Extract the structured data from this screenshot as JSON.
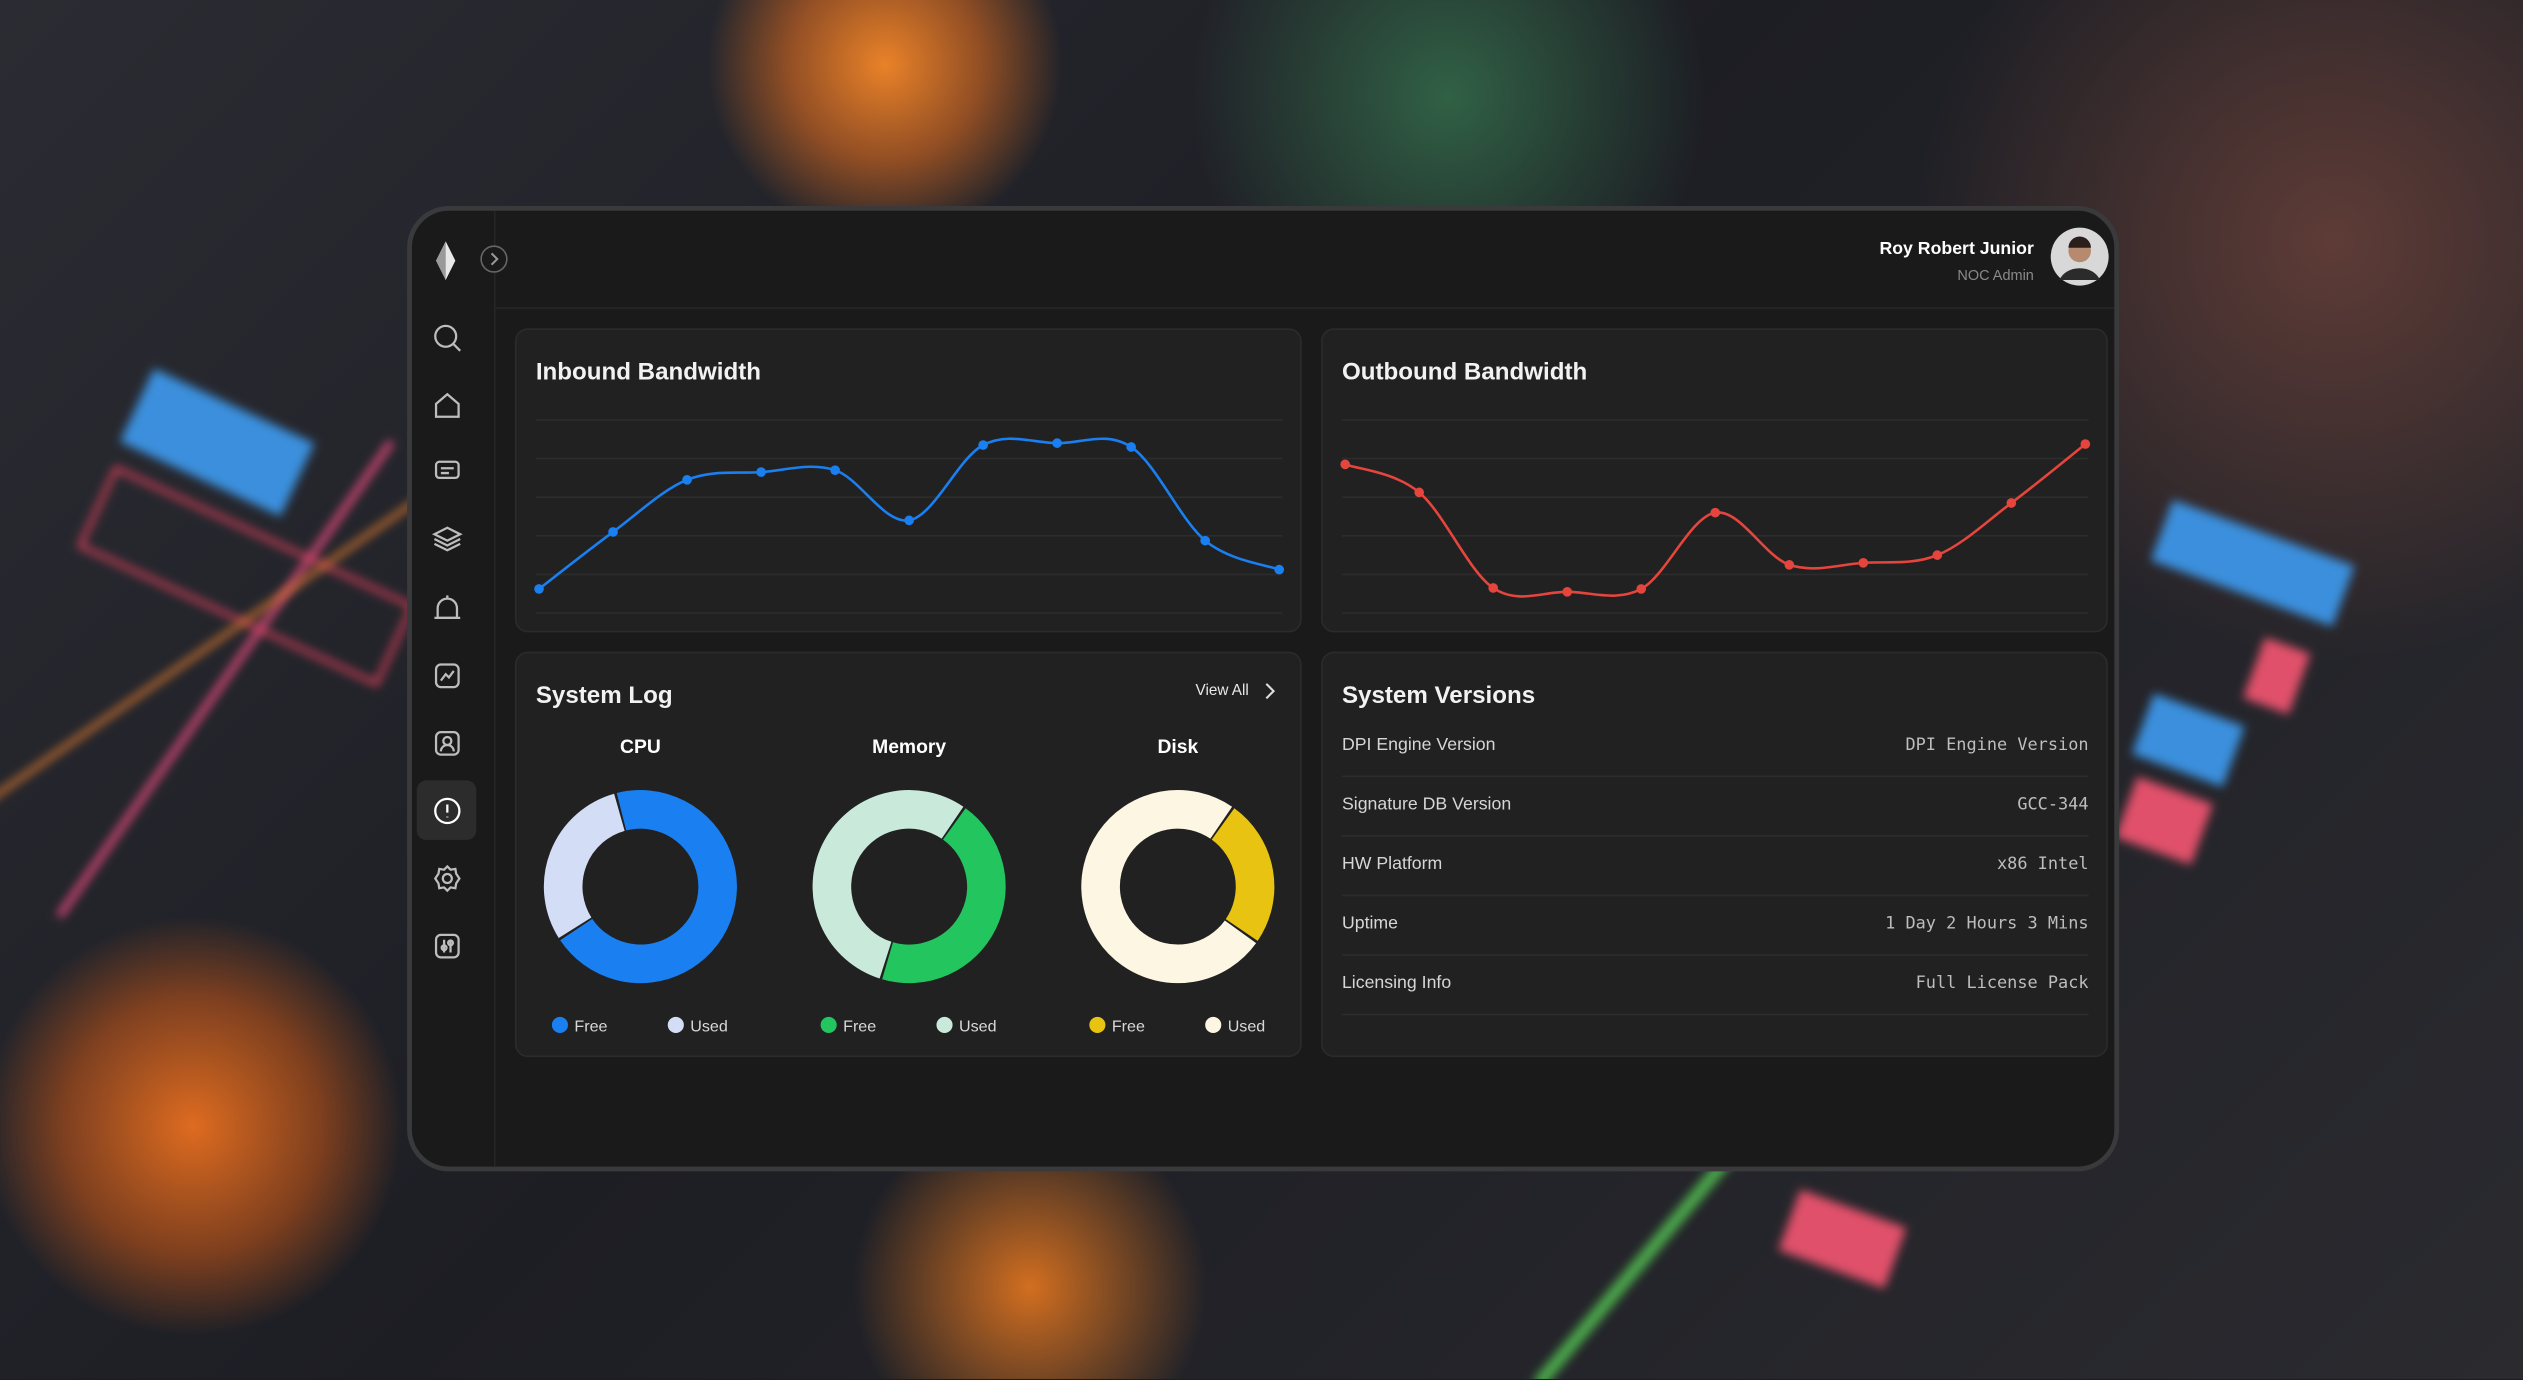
{
  "header": {
    "user_name": "Roy Robert Junior",
    "user_role": "NOC Admin"
  },
  "chart_data": [
    {
      "type": "line",
      "title": "Inbound Bandwidth",
      "color": "#1a7ff0",
      "ylim": [
        0,
        100
      ],
      "values": [
        12.5,
        42,
        69,
        73,
        74,
        48,
        87,
        88,
        86,
        37.5,
        22.5
      ]
    },
    {
      "type": "line",
      "title": "Outbound Bandwidth",
      "color": "#e5453d",
      "ylim": [
        0,
        100
      ],
      "values": [
        77,
        62.5,
        13,
        11,
        12.5,
        52,
        25,
        26,
        30,
        57,
        87.5
      ]
    },
    {
      "type": "donut",
      "title": "CPU",
      "categories": [
        "Free",
        "Used"
      ],
      "values": [
        70,
        30
      ],
      "colors": [
        "#1a7ff0",
        "#d3ddf6"
      ]
    },
    {
      "type": "donut",
      "title": "Memory",
      "categories": [
        "Free",
        "Used"
      ],
      "values": [
        45,
        55
      ],
      "colors": [
        "#22c55e",
        "#c9eadb"
      ]
    },
    {
      "type": "donut",
      "title": "Disk",
      "categories": [
        "Free",
        "Used"
      ],
      "values": [
        25,
        75
      ],
      "colors": [
        "#e8c311",
        "#fdf6e3"
      ]
    }
  ],
  "system_log": {
    "title": "System Log",
    "view_all": "View All"
  },
  "system_versions": {
    "title": "System Versions",
    "rows": [
      [
        "DPI Engine Version",
        "DPI Engine Version"
      ],
      [
        "Signature DB Version",
        "GCC-344"
      ],
      [
        "HW Platform",
        "x86 Intel"
      ],
      [
        "Uptime",
        "1 Day 2 Hours 3 Mins"
      ],
      [
        "Licensing Info",
        "Full License Pack"
      ]
    ]
  }
}
